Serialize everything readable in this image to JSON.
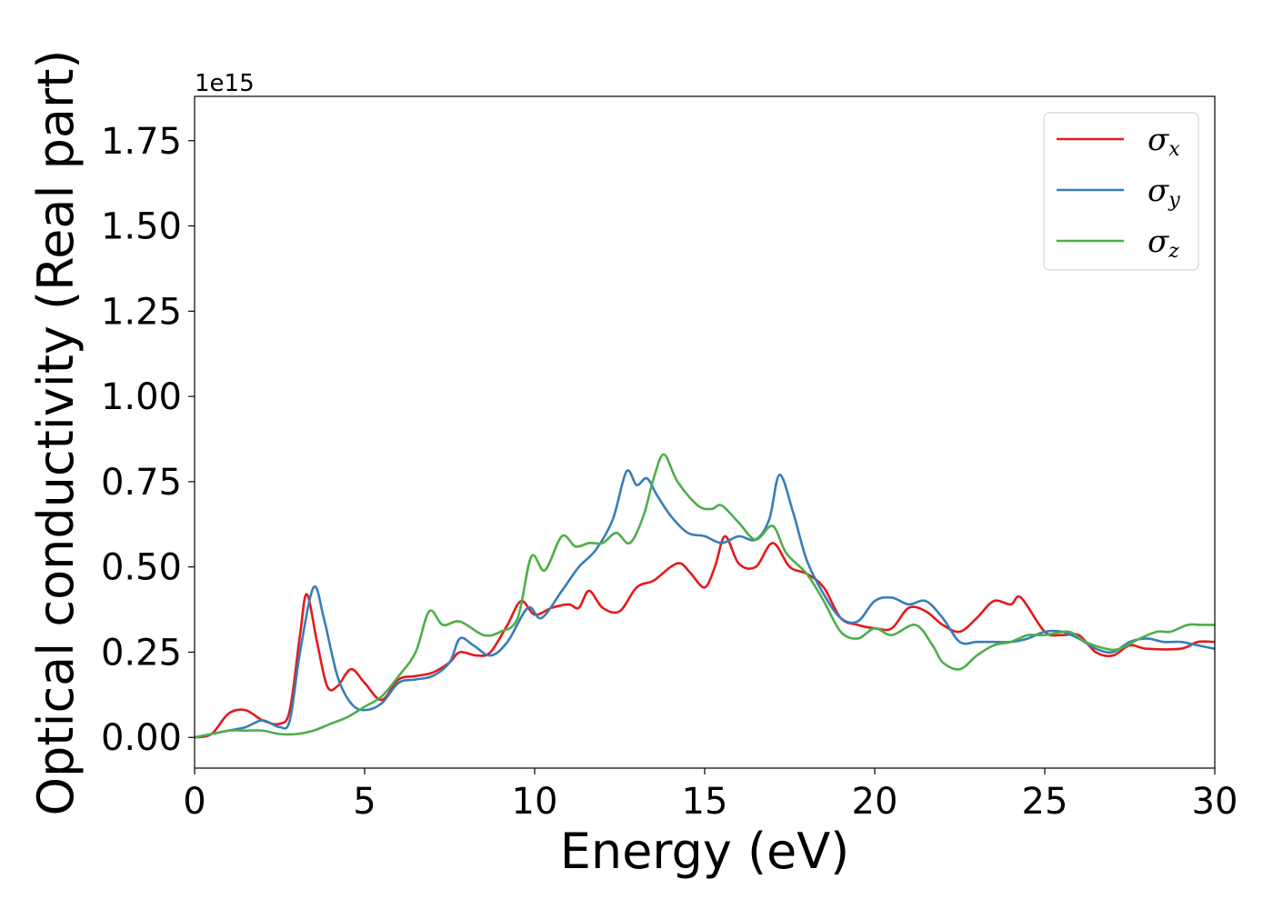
{
  "chart_data": {
    "type": "line",
    "title": "",
    "xlabel": "Energy (eV)",
    "ylabel": "Optical conductivity (Real part)",
    "y_offset_text": "1e15",
    "xlim": [
      0,
      30
    ],
    "ylim": [
      -0.09,
      1.88
    ],
    "x_ticks": [
      0,
      5,
      10,
      15,
      20,
      25,
      30
    ],
    "x_tick_labels": [
      "0",
      "5",
      "10",
      "15",
      "20",
      "25",
      "30"
    ],
    "y_ticks": [
      0.0,
      0.25,
      0.5,
      0.75,
      1.0,
      1.25,
      1.5,
      1.75
    ],
    "y_tick_labels": [
      "0.00",
      "0.25",
      "0.50",
      "0.75",
      "1.00",
      "1.25",
      "1.50",
      "1.75"
    ],
    "grid": false,
    "legend_position": "top-right",
    "series": [
      {
        "name": "σx",
        "symbol": "σ",
        "subscript": "x",
        "color": "#e41a1c",
        "points": [
          [
            0,
            0
          ],
          [
            0.5,
            0.01
          ],
          [
            1,
            0.07
          ],
          [
            1.5,
            0.08
          ],
          [
            2,
            0.05
          ],
          [
            2.5,
            0.04
          ],
          [
            2.8,
            0.08
          ],
          [
            3.1,
            0.3
          ],
          [
            3.3,
            0.42
          ],
          [
            3.6,
            0.28
          ],
          [
            3.9,
            0.15
          ],
          [
            4.2,
            0.15
          ],
          [
            4.6,
            0.2
          ],
          [
            5,
            0.16
          ],
          [
            5.5,
            0.11
          ],
          [
            6,
            0.17
          ],
          [
            6.5,
            0.18
          ],
          [
            7,
            0.19
          ],
          [
            7.5,
            0.22
          ],
          [
            7.8,
            0.25
          ],
          [
            8.3,
            0.24
          ],
          [
            8.7,
            0.25
          ],
          [
            9.2,
            0.33
          ],
          [
            9.6,
            0.4
          ],
          [
            10,
            0.36
          ],
          [
            10.5,
            0.38
          ],
          [
            11,
            0.39
          ],
          [
            11.3,
            0.38
          ],
          [
            11.6,
            0.43
          ],
          [
            12,
            0.38
          ],
          [
            12.5,
            0.37
          ],
          [
            13,
            0.44
          ],
          [
            13.5,
            0.46
          ],
          [
            14,
            0.5
          ],
          [
            14.3,
            0.51
          ],
          [
            14.6,
            0.48
          ],
          [
            15,
            0.44
          ],
          [
            15.3,
            0.5
          ],
          [
            15.6,
            0.59
          ],
          [
            16,
            0.51
          ],
          [
            16.5,
            0.5
          ],
          [
            17,
            0.57
          ],
          [
            17.5,
            0.5
          ],
          [
            18,
            0.48
          ],
          [
            18.5,
            0.44
          ],
          [
            19,
            0.35
          ],
          [
            19.5,
            0.33
          ],
          [
            20,
            0.32
          ],
          [
            20.5,
            0.32
          ],
          [
            21,
            0.38
          ],
          [
            21.5,
            0.37
          ],
          [
            22,
            0.33
          ],
          [
            22.5,
            0.31
          ],
          [
            23,
            0.35
          ],
          [
            23.5,
            0.4
          ],
          [
            24,
            0.39
          ],
          [
            24.3,
            0.41
          ],
          [
            25,
            0.31
          ],
          [
            25.5,
            0.3
          ],
          [
            26,
            0.3
          ],
          [
            26.5,
            0.25
          ],
          [
            27,
            0.24
          ],
          [
            27.5,
            0.27
          ],
          [
            28,
            0.26
          ],
          [
            29,
            0.26
          ],
          [
            29.5,
            0.28
          ],
          [
            30,
            0.28
          ]
        ]
      },
      {
        "name": "σy",
        "symbol": "σ",
        "subscript": "y",
        "color": "#377eb8",
        "points": [
          [
            0,
            0
          ],
          [
            0.5,
            0.01
          ],
          [
            1,
            0.02
          ],
          [
            1.5,
            0.03
          ],
          [
            2,
            0.05
          ],
          [
            2.5,
            0.03
          ],
          [
            2.8,
            0.05
          ],
          [
            3.1,
            0.25
          ],
          [
            3.5,
            0.44
          ],
          [
            3.8,
            0.35
          ],
          [
            4.2,
            0.18
          ],
          [
            4.6,
            0.1
          ],
          [
            5,
            0.08
          ],
          [
            5.5,
            0.1
          ],
          [
            6,
            0.16
          ],
          [
            6.5,
            0.17
          ],
          [
            7,
            0.18
          ],
          [
            7.5,
            0.22
          ],
          [
            7.8,
            0.29
          ],
          [
            8.2,
            0.27
          ],
          [
            8.7,
            0.24
          ],
          [
            9.2,
            0.28
          ],
          [
            9.8,
            0.38
          ],
          [
            10.2,
            0.35
          ],
          [
            10.8,
            0.43
          ],
          [
            11.3,
            0.5
          ],
          [
            11.8,
            0.55
          ],
          [
            12.3,
            0.64
          ],
          [
            12.7,
            0.78
          ],
          [
            13,
            0.74
          ],
          [
            13.3,
            0.76
          ],
          [
            13.6,
            0.71
          ],
          [
            14,
            0.65
          ],
          [
            14.5,
            0.6
          ],
          [
            15,
            0.59
          ],
          [
            15.5,
            0.57
          ],
          [
            16,
            0.59
          ],
          [
            16.5,
            0.58
          ],
          [
            16.9,
            0.64
          ],
          [
            17.2,
            0.77
          ],
          [
            17.6,
            0.66
          ],
          [
            18,
            0.52
          ],
          [
            18.5,
            0.42
          ],
          [
            19,
            0.35
          ],
          [
            19.5,
            0.34
          ],
          [
            20,
            0.4
          ],
          [
            20.5,
            0.41
          ],
          [
            21,
            0.39
          ],
          [
            21.5,
            0.4
          ],
          [
            22,
            0.35
          ],
          [
            22.5,
            0.28
          ],
          [
            23,
            0.28
          ],
          [
            23.5,
            0.28
          ],
          [
            24,
            0.28
          ],
          [
            24.5,
            0.29
          ],
          [
            25,
            0.31
          ],
          [
            25.5,
            0.31
          ],
          [
            26,
            0.29
          ],
          [
            26.5,
            0.26
          ],
          [
            27,
            0.25
          ],
          [
            27.5,
            0.28
          ],
          [
            28,
            0.29
          ],
          [
            28.5,
            0.28
          ],
          [
            29,
            0.28
          ],
          [
            29.5,
            0.27
          ],
          [
            30,
            0.26
          ]
        ]
      },
      {
        "name": "σz",
        "symbol": "σ",
        "subscript": "z",
        "color": "#4daf4a",
        "points": [
          [
            0,
            0
          ],
          [
            0.5,
            0.01
          ],
          [
            1,
            0.02
          ],
          [
            1.5,
            0.02
          ],
          [
            2,
            0.02
          ],
          [
            2.5,
            0.01
          ],
          [
            3,
            0.01
          ],
          [
            3.5,
            0.02
          ],
          [
            4,
            0.04
          ],
          [
            4.5,
            0.06
          ],
          [
            5,
            0.09
          ],
          [
            5.5,
            0.12
          ],
          [
            6,
            0.18
          ],
          [
            6.5,
            0.25
          ],
          [
            6.9,
            0.37
          ],
          [
            7.3,
            0.33
          ],
          [
            7.8,
            0.34
          ],
          [
            8.5,
            0.3
          ],
          [
            9,
            0.31
          ],
          [
            9.5,
            0.35
          ],
          [
            9.9,
            0.53
          ],
          [
            10.3,
            0.49
          ],
          [
            10.8,
            0.59
          ],
          [
            11.2,
            0.56
          ],
          [
            11.6,
            0.57
          ],
          [
            12,
            0.57
          ],
          [
            12.4,
            0.6
          ],
          [
            12.8,
            0.57
          ],
          [
            13.2,
            0.65
          ],
          [
            13.5,
            0.76
          ],
          [
            13.8,
            0.83
          ],
          [
            14.2,
            0.75
          ],
          [
            14.8,
            0.68
          ],
          [
            15.2,
            0.67
          ],
          [
            15.5,
            0.68
          ],
          [
            16,
            0.63
          ],
          [
            16.5,
            0.58
          ],
          [
            17,
            0.62
          ],
          [
            17.4,
            0.54
          ],
          [
            18,
            0.48
          ],
          [
            18.5,
            0.4
          ],
          [
            19,
            0.31
          ],
          [
            19.5,
            0.29
          ],
          [
            20,
            0.32
          ],
          [
            20.5,
            0.3
          ],
          [
            21.2,
            0.33
          ],
          [
            21.7,
            0.27
          ],
          [
            22,
            0.22
          ],
          [
            22.5,
            0.2
          ],
          [
            23,
            0.24
          ],
          [
            23.5,
            0.27
          ],
          [
            24,
            0.28
          ],
          [
            24.5,
            0.3
          ],
          [
            25,
            0.3
          ],
          [
            25.7,
            0.31
          ],
          [
            26.2,
            0.28
          ],
          [
            26.8,
            0.26
          ],
          [
            27.2,
            0.26
          ],
          [
            27.8,
            0.29
          ],
          [
            28.3,
            0.31
          ],
          [
            28.7,
            0.31
          ],
          [
            29.2,
            0.33
          ],
          [
            29.6,
            0.33
          ],
          [
            30,
            0.33
          ]
        ]
      }
    ]
  }
}
